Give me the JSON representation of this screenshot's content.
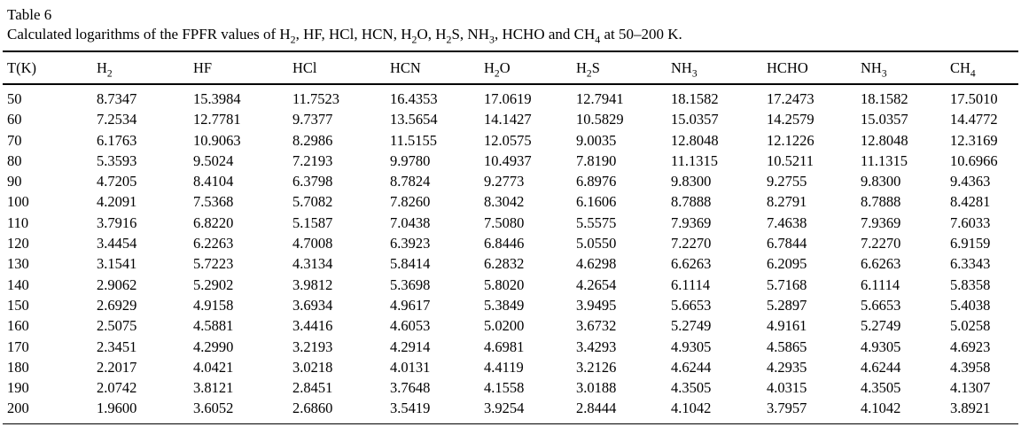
{
  "page": {
    "background": "#ffffff",
    "text_color": "#000000"
  },
  "table": {
    "label": "Table 6",
    "caption": "Calculated logarithms of the FPFR values of H_2, HF, HCl, HCN, H_2O, H_2S, NH_3, HCHO and CH_4 at 50–200 K.",
    "columns": [
      "T(K)",
      "H_2",
      "HF",
      "HCl",
      "HCN",
      "H_2O",
      "H_2S",
      "NH_3",
      "HCHO",
      "NH_3",
      "CH_4"
    ],
    "rows": [
      [
        "50",
        "8.7347",
        "15.3984",
        "11.7523",
        "16.4353",
        "17.0619",
        "12.7941",
        "18.1582",
        "17.2473",
        "18.1582",
        "17.5010"
      ],
      [
        "60",
        "7.2534",
        "12.7781",
        "9.7377",
        "13.5654",
        "14.1427",
        "10.5829",
        "15.0357",
        "14.2579",
        "15.0357",
        "14.4772"
      ],
      [
        "70",
        "6.1763",
        "10.9063",
        "8.2986",
        "11.5155",
        "12.0575",
        "9.0035",
        "12.8048",
        "12.1226",
        "12.8048",
        "12.3169"
      ],
      [
        "80",
        "5.3593",
        "9.5024",
        "7.2193",
        "9.9780",
        "10.4937",
        "7.8190",
        "11.1315",
        "10.5211",
        "11.1315",
        "10.6966"
      ],
      [
        "90",
        "4.7205",
        "8.4104",
        "6.3798",
        "8.7824",
        "9.2773",
        "6.8976",
        "9.8300",
        "9.2755",
        "9.8300",
        "9.4363"
      ],
      [
        "100",
        "4.2091",
        "7.5368",
        "5.7082",
        "7.8260",
        "8.3042",
        "6.1606",
        "8.7888",
        "8.2791",
        "8.7888",
        "8.4281"
      ],
      [
        "110",
        "3.7916",
        "6.8220",
        "5.1587",
        "7.0438",
        "7.5080",
        "5.5575",
        "7.9369",
        "7.4638",
        "7.9369",
        "7.6033"
      ],
      [
        "120",
        "3.4454",
        "6.2263",
        "4.7008",
        "6.3923",
        "6.8446",
        "5.0550",
        "7.2270",
        "6.7844",
        "7.2270",
        "6.9159"
      ],
      [
        "130",
        "3.1541",
        "5.7223",
        "4.3134",
        "5.8414",
        "6.2832",
        "4.6298",
        "6.6263",
        "6.2095",
        "6.6263",
        "6.3343"
      ],
      [
        "140",
        "2.9062",
        "5.2902",
        "3.9812",
        "5.3698",
        "5.8020",
        "4.2654",
        "6.1114",
        "5.7168",
        "6.1114",
        "5.8358"
      ],
      [
        "150",
        "2.6929",
        "4.9158",
        "3.6934",
        "4.9617",
        "5.3849",
        "3.9495",
        "5.6653",
        "5.2897",
        "5.6653",
        "5.4038"
      ],
      [
        "160",
        "2.5075",
        "4.5881",
        "3.4416",
        "4.6053",
        "5.0200",
        "3.6732",
        "5.2749",
        "4.9161",
        "5.2749",
        "5.0258"
      ],
      [
        "170",
        "2.3451",
        "4.2990",
        "3.2193",
        "4.2914",
        "4.6981",
        "3.4293",
        "4.9305",
        "4.5865",
        "4.9305",
        "4.6923"
      ],
      [
        "180",
        "2.2017",
        "4.0421",
        "3.0218",
        "4.0131",
        "4.4119",
        "3.2126",
        "4.6244",
        "4.2935",
        "4.6244",
        "4.3958"
      ],
      [
        "190",
        "2.0742",
        "3.8121",
        "2.8451",
        "3.7648",
        "4.1558",
        "3.0188",
        "4.3505",
        "4.0315",
        "4.3505",
        "4.1307"
      ],
      [
        "200",
        "1.9600",
        "3.6052",
        "2.6860",
        "3.5419",
        "3.9254",
        "2.8444",
        "4.1042",
        "3.7957",
        "4.1042",
        "3.8921"
      ]
    ]
  }
}
